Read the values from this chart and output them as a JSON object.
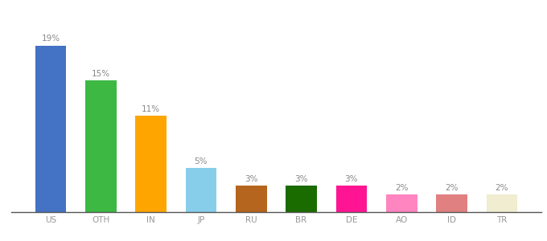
{
  "categories": [
    "US",
    "OTH",
    "IN",
    "JP",
    "RU",
    "BR",
    "DE",
    "AO",
    "ID",
    "TR"
  ],
  "values": [
    19,
    15,
    11,
    5,
    3,
    3,
    3,
    2,
    2,
    2
  ],
  "bar_colors": [
    "#4472C4",
    "#3CB843",
    "#FFA500",
    "#87CEEB",
    "#B5651D",
    "#1A6B00",
    "#FF1493",
    "#FF85C0",
    "#E08080",
    "#F0EDD0"
  ],
  "xlabel": "",
  "ylabel": "",
  "ylim": [
    0,
    22
  ],
  "bar_width": 0.62,
  "label_fontsize": 7.5,
  "tick_fontsize": 7.5,
  "background_color": "#ffffff",
  "label_color": "#999999",
  "value_label_color": "#888888"
}
